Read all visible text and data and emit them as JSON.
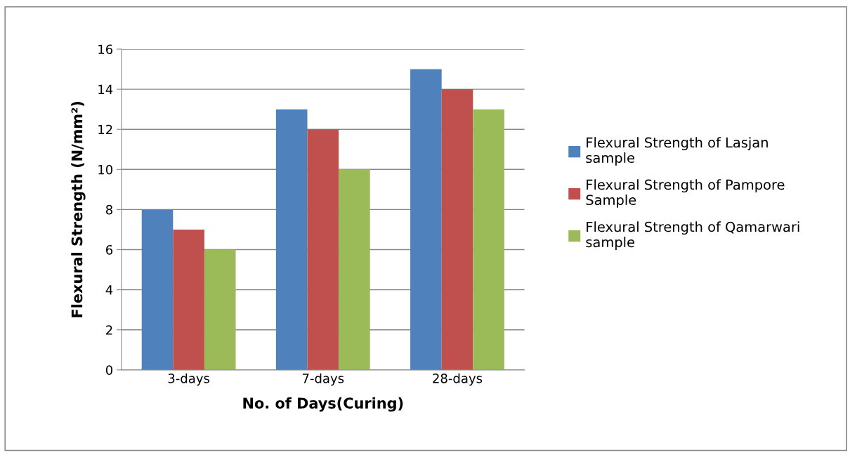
{
  "chart_data": {
    "type": "bar",
    "xlabel": "No. of Days(Curing)",
    "ylabel": "Flexural Strength (N/mm²)",
    "categories": [
      "3-days",
      "7-days",
      "28-days"
    ],
    "series": [
      {
        "name": "Flexural Strength of Lasjan sample",
        "color": "#4f81bd",
        "values": [
          8,
          13,
          15
        ]
      },
      {
        "name": "Flexural Strength of Pampore Sample",
        "color": "#c0504d",
        "values": [
          7,
          12,
          14
        ]
      },
      {
        "name": "Flexural Strength of Qamarwari sample",
        "color": "#9bbb59",
        "values": [
          6,
          10,
          13
        ]
      }
    ],
    "ylim": [
      0,
      16
    ],
    "yticks": [
      0,
      2,
      4,
      6,
      8,
      10,
      12,
      14,
      16
    ],
    "grid": "y",
    "legend": "right"
  }
}
